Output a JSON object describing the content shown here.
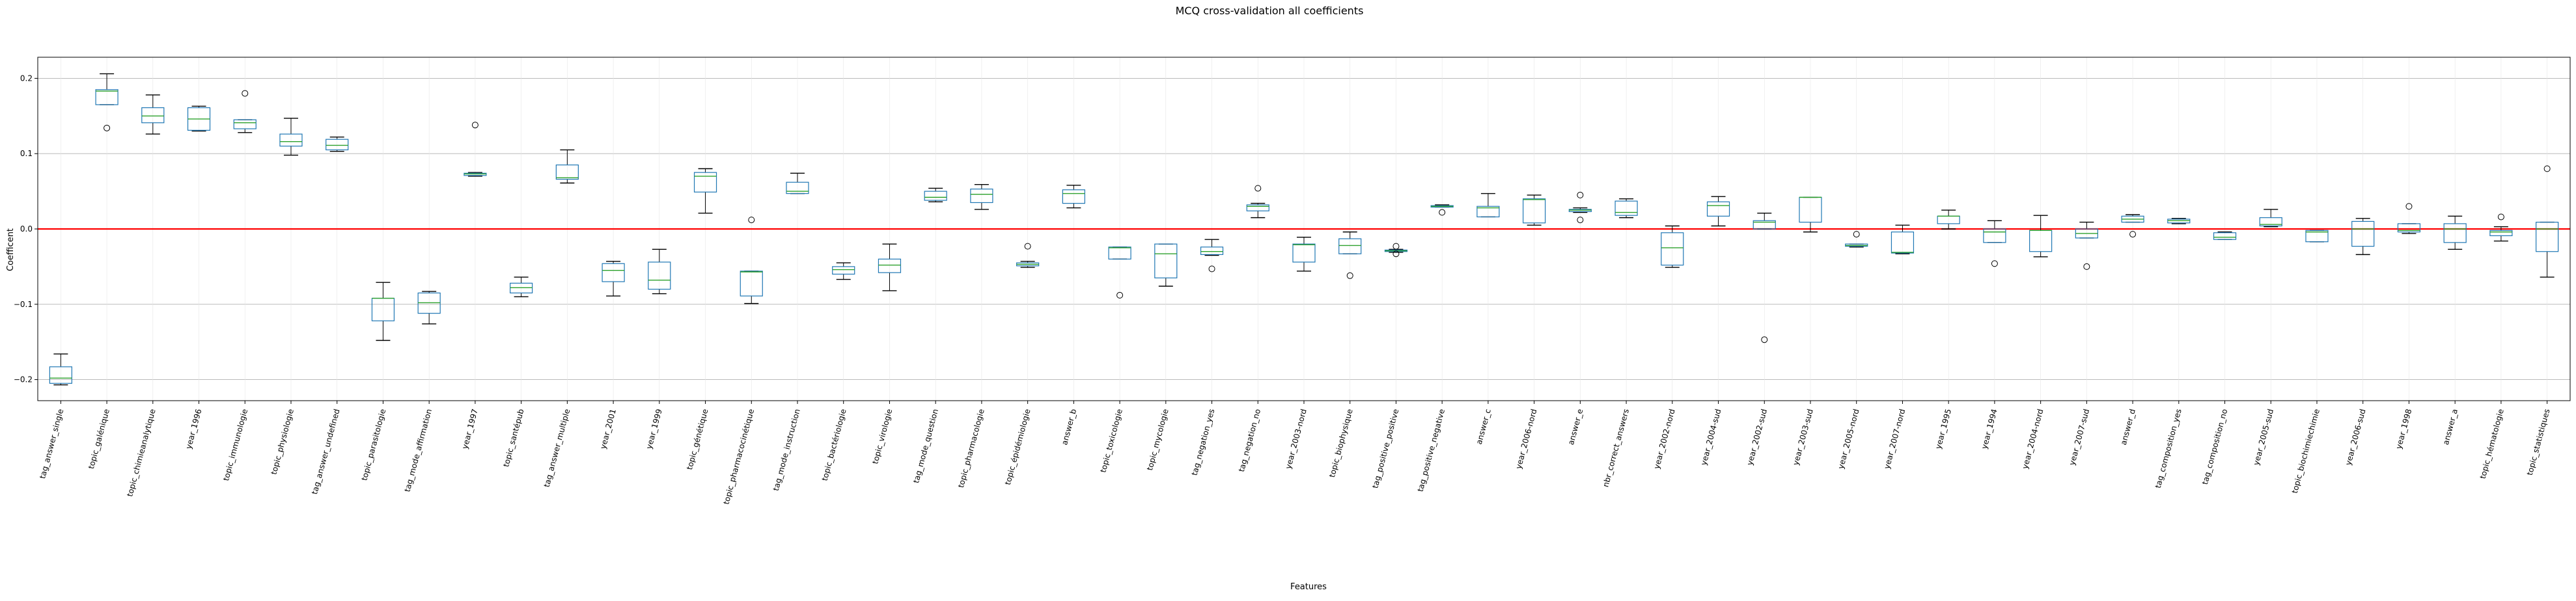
{
  "chart_data": {
    "type": "box",
    "title": "MCQ cross-validation all coefficients",
    "xlabel": "Features",
    "ylabel": "Coefficent",
    "ylim": [
      -0.228,
      0.228
    ],
    "yticks": [
      -0.2,
      -0.1,
      0.0,
      0.1,
      0.2
    ],
    "ytick_labels": [
      "−0.2",
      "−0.1",
      "0.0",
      "0.1",
      "0.2"
    ],
    "grid": "horizontal",
    "reference_line": {
      "y": 0.0,
      "color": "#ff0000"
    },
    "colors": {
      "box": "#1f77b4",
      "median": "#2ca02c",
      "whisker": "#000000",
      "grid": "#b0b0b0",
      "reference": "#ff0000"
    },
    "categories": [
      "tag_answer_single",
      "topic_galénique",
      "topic_chimieanalytique",
      "year_1996",
      "topic_immunologie",
      "topic_physiologie",
      "tag_answer_undefined",
      "topic_parasitologie",
      "tag_mode_affirmation",
      "year_1997",
      "topic_santépub",
      "tag_answer_multiple",
      "year_2001",
      "year_1999",
      "topic_génétique",
      "topic_pharmacocinétique",
      "tag_mode_instruction",
      "topic_bactériologie",
      "topic_virologie",
      "tag_mode_question",
      "topic_pharmacologie",
      "topic_épidémiologie",
      "answer_b",
      "topic_toxicologie",
      "topic_mycologie",
      "tag_negation_yes",
      "tag_negation_no",
      "year_2003-nord",
      "topic_biophysique",
      "tag_positive_positive",
      "tag_positive_negative",
      "answer_c",
      "year_2006-nord",
      "answer_e",
      "nbr_correct_answers",
      "year_2002-nord",
      "year_2004-sud",
      "year_2002-sud",
      "year_2003-sud",
      "year_2005-nord",
      "year_2007-nord",
      "year_1995",
      "year_1994",
      "year_2004-nord",
      "year_2007-sud",
      "answer_d",
      "tag_composition_yes",
      "tag_composition_no",
      "year_2005-sud",
      "topic_biochimiechimie",
      "year_2006-sud",
      "year_1998",
      "answer_a",
      "topic_hématologie",
      "topic_statistiques"
    ],
    "boxes": [
      {
        "wl": -0.207,
        "q1": -0.205,
        "med": -0.198,
        "q3": -0.183,
        "wh": -0.166,
        "fl": []
      },
      {
        "wl": 0.165,
        "q1": 0.165,
        "med": 0.183,
        "q3": 0.185,
        "wh": 0.206,
        "fl": [
          0.134
        ]
      },
      {
        "wl": 0.126,
        "q1": 0.141,
        "med": 0.15,
        "q3": 0.161,
        "wh": 0.178,
        "fl": []
      },
      {
        "wl": 0.13,
        "q1": 0.131,
        "med": 0.146,
        "q3": 0.161,
        "wh": 0.163,
        "fl": []
      },
      {
        "wl": 0.128,
        "q1": 0.133,
        "med": 0.141,
        "q3": 0.145,
        "wh": 0.145,
        "fl": [
          0.18
        ]
      },
      {
        "wl": 0.098,
        "q1": 0.11,
        "med": 0.116,
        "q3": 0.126,
        "wh": 0.147,
        "fl": []
      },
      {
        "wl": 0.103,
        "q1": 0.105,
        "med": 0.111,
        "q3": 0.119,
        "wh": 0.122,
        "fl": []
      },
      {
        "wl": -0.148,
        "q1": -0.122,
        "med": -0.092,
        "q3": -0.092,
        "wh": -0.071,
        "fl": []
      },
      {
        "wl": -0.126,
        "q1": -0.112,
        "med": -0.098,
        "q3": -0.085,
        "wh": -0.083,
        "fl": []
      },
      {
        "wl": 0.07,
        "q1": 0.071,
        "med": 0.073,
        "q3": 0.074,
        "wh": 0.075,
        "fl": [
          0.138
        ]
      },
      {
        "wl": -0.09,
        "q1": -0.085,
        "med": -0.078,
        "q3": -0.072,
        "wh": -0.064,
        "fl": []
      },
      {
        "wl": 0.061,
        "q1": 0.066,
        "med": 0.068,
        "q3": 0.085,
        "wh": 0.105,
        "fl": []
      },
      {
        "wl": -0.089,
        "q1": -0.07,
        "med": -0.055,
        "q3": -0.046,
        "wh": -0.043,
        "fl": []
      },
      {
        "wl": -0.086,
        "q1": -0.08,
        "med": -0.068,
        "q3": -0.044,
        "wh": -0.027,
        "fl": []
      },
      {
        "wl": 0.021,
        "q1": 0.049,
        "med": 0.07,
        "q3": 0.075,
        "wh": 0.08,
        "fl": []
      },
      {
        "wl": -0.099,
        "q1": -0.089,
        "med": -0.057,
        "q3": -0.056,
        "wh": -0.056,
        "fl": [
          0.012
        ]
      },
      {
        "wl": 0.047,
        "q1": 0.047,
        "med": 0.05,
        "q3": 0.062,
        "wh": 0.074,
        "fl": []
      },
      {
        "wl": -0.067,
        "q1": -0.06,
        "med": -0.054,
        "q3": -0.05,
        "wh": -0.045,
        "fl": []
      },
      {
        "wl": -0.082,
        "q1": -0.058,
        "med": -0.048,
        "q3": -0.04,
        "wh": -0.02,
        "fl": []
      },
      {
        "wl": 0.036,
        "q1": 0.038,
        "med": 0.042,
        "q3": 0.05,
        "wh": 0.054,
        "fl": []
      },
      {
        "wl": 0.026,
        "q1": 0.035,
        "med": 0.046,
        "q3": 0.053,
        "wh": 0.059,
        "fl": []
      },
      {
        "wl": -0.051,
        "q1": -0.049,
        "med": -0.047,
        "q3": -0.045,
        "wh": -0.043,
        "fl": [
          -0.023
        ]
      },
      {
        "wl": 0.028,
        "q1": 0.034,
        "med": 0.047,
        "q3": 0.052,
        "wh": 0.058,
        "fl": []
      },
      {
        "wl": -0.04,
        "q1": -0.04,
        "med": -0.025,
        "q3": -0.024,
        "wh": -0.024,
        "fl": [
          -0.088
        ]
      },
      {
        "wl": -0.076,
        "q1": -0.065,
        "med": -0.033,
        "q3": -0.02,
        "wh": -0.02,
        "fl": []
      },
      {
        "wl": -0.035,
        "q1": -0.034,
        "med": -0.03,
        "q3": -0.024,
        "wh": -0.014,
        "fl": [
          -0.053
        ]
      },
      {
        "wl": 0.015,
        "q1": 0.024,
        "med": 0.03,
        "q3": 0.032,
        "wh": 0.034,
        "fl": [
          0.054
        ]
      },
      {
        "wl": -0.056,
        "q1": -0.044,
        "med": -0.021,
        "q3": -0.02,
        "wh": -0.011,
        "fl": []
      },
      {
        "wl": -0.033,
        "q1": -0.033,
        "med": -0.022,
        "q3": -0.013,
        "wh": -0.004,
        "fl": [
          -0.062
        ]
      },
      {
        "wl": -0.031,
        "q1": -0.03,
        "med": -0.029,
        "q3": -0.028,
        "wh": -0.027,
        "fl": [
          -0.023,
          -0.033
        ]
      },
      {
        "wl": 0.029,
        "q1": 0.029,
        "med": 0.03,
        "q3": 0.031,
        "wh": 0.032,
        "fl": [
          0.022
        ]
      },
      {
        "wl": 0.016,
        "q1": 0.016,
        "med": 0.028,
        "q3": 0.03,
        "wh": 0.047,
        "fl": []
      },
      {
        "wl": 0.005,
        "q1": 0.008,
        "med": 0.039,
        "q3": 0.04,
        "wh": 0.045,
        "fl": []
      },
      {
        "wl": 0.022,
        "q1": 0.023,
        "med": 0.025,
        "q3": 0.026,
        "wh": 0.028,
        "fl": [
          0.045,
          0.012
        ]
      },
      {
        "wl": 0.015,
        "q1": 0.018,
        "med": 0.022,
        "q3": 0.037,
        "wh": 0.04,
        "fl": []
      },
      {
        "wl": -0.051,
        "q1": -0.048,
        "med": -0.025,
        "q3": -0.005,
        "wh": 0.004,
        "fl": []
      },
      {
        "wl": 0.004,
        "q1": 0.017,
        "med": 0.031,
        "q3": 0.036,
        "wh": 0.043,
        "fl": []
      },
      {
        "wl": 0.0,
        "q1": 0.0,
        "med": 0.009,
        "q3": 0.011,
        "wh": 0.021,
        "fl": [
          -0.147
        ]
      },
      {
        "wl": -0.004,
        "q1": 0.009,
        "med": 0.042,
        "q3": 0.042,
        "wh": 0.042,
        "fl": []
      },
      {
        "wl": -0.024,
        "q1": -0.023,
        "med": -0.022,
        "q3": -0.02,
        "wh": -0.02,
        "fl": [
          -0.007
        ]
      },
      {
        "wl": -0.033,
        "q1": -0.032,
        "med": -0.031,
        "q3": -0.004,
        "wh": 0.005,
        "fl": []
      },
      {
        "wl": 0.0,
        "q1": 0.007,
        "med": 0.017,
        "q3": 0.017,
        "wh": 0.025,
        "fl": []
      },
      {
        "wl": -0.018,
        "q1": -0.018,
        "med": -0.004,
        "q3": 0.0,
        "wh": 0.011,
        "fl": [
          -0.046
        ]
      },
      {
        "wl": -0.037,
        "q1": -0.03,
        "med": -0.002,
        "q3": -0.002,
        "wh": 0.018,
        "fl": []
      },
      {
        "wl": -0.012,
        "q1": -0.012,
        "med": -0.006,
        "q3": 0.0,
        "wh": 0.009,
        "fl": [
          -0.05
        ]
      },
      {
        "wl": 0.009,
        "q1": 0.009,
        "med": 0.013,
        "q3": 0.017,
        "wh": 0.019,
        "fl": [
          -0.007
        ]
      },
      {
        "wl": 0.007,
        "q1": 0.008,
        "med": 0.011,
        "q3": 0.013,
        "wh": 0.014,
        "fl": []
      },
      {
        "wl": -0.014,
        "q1": -0.014,
        "med": -0.011,
        "q3": -0.005,
        "wh": -0.004,
        "fl": []
      },
      {
        "wl": 0.003,
        "q1": 0.004,
        "med": 0.006,
        "q3": 0.015,
        "wh": 0.026,
        "fl": []
      },
      {
        "wl": -0.017,
        "q1": -0.017,
        "med": -0.004,
        "q3": -0.002,
        "wh": -0.002,
        "fl": []
      },
      {
        "wl": -0.034,
        "q1": -0.023,
        "med": 0.0,
        "q3": 0.01,
        "wh": 0.014,
        "fl": []
      },
      {
        "wl": -0.006,
        "q1": -0.004,
        "med": -0.002,
        "q3": 0.007,
        "wh": 0.007,
        "fl": [
          0.03
        ]
      },
      {
        "wl": -0.027,
        "q1": -0.018,
        "med": 0.0,
        "q3": 0.007,
        "wh": 0.017,
        "fl": []
      },
      {
        "wl": -0.016,
        "q1": -0.009,
        "med": -0.004,
        "q3": -0.002,
        "wh": 0.003,
        "fl": [
          0.016
        ]
      },
      {
        "wl": -0.064,
        "q1": -0.03,
        "med": 0.0,
        "q3": 0.009,
        "wh": 0.009,
        "fl": [
          0.08
        ]
      }
    ]
  }
}
